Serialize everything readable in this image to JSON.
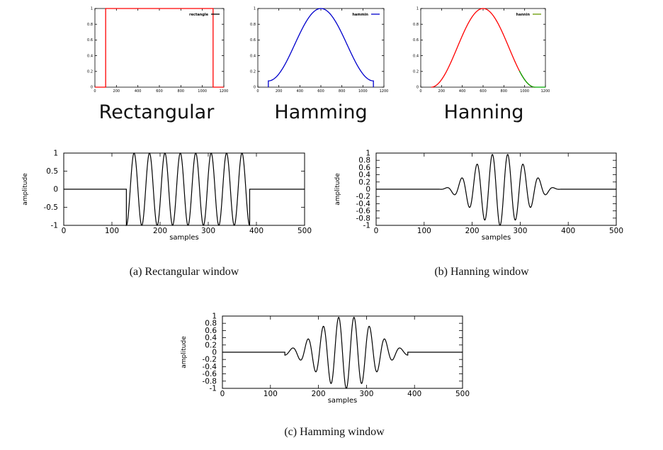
{
  "labels": {
    "top_left": "Rectangular",
    "top_mid": "Hamming",
    "top_right": "Hanning"
  },
  "captions": {
    "a": "(a) Rectangular window",
    "b": "(b) Hanning window",
    "c": "(c) Hamming window"
  },
  "chart_data": [
    {
      "id": "win-rect",
      "type": "line",
      "legend": "rectangle",
      "legend_position": "top-right",
      "color": "#ff0000",
      "legend_color": "#000000",
      "shape": "rectangular",
      "start": 100,
      "end": 1100,
      "xlim": [
        0,
        1200
      ],
      "ylim": [
        0,
        1
      ],
      "xticks": [
        "0",
        "200",
        "400",
        "600",
        "800",
        "1000",
        "1200"
      ],
      "yticks": [
        "0",
        "0.2",
        "0.4",
        "0.6",
        "0.8",
        "1"
      ],
      "x": [
        0,
        100,
        100,
        1100,
        1100,
        1200
      ],
      "y": [
        0,
        0,
        1,
        1,
        0,
        0
      ]
    },
    {
      "id": "win-hamming",
      "type": "line",
      "legend": "hammin",
      "legend_position": "top-right",
      "color": "#0000cc",
      "legend_color": "#0000cc",
      "shape": "hamming",
      "start": 100,
      "end": 1100,
      "xlim": [
        0,
        1200
      ],
      "ylim": [
        0,
        1
      ],
      "xticks": [
        "0",
        "200",
        "400",
        "600",
        "800",
        "1000",
        "1200"
      ],
      "yticks": [
        "0",
        "0.2",
        "0.4",
        "0.6",
        "0.8",
        "1"
      ],
      "x": [
        100,
        200,
        300,
        400,
        500,
        600,
        700,
        800,
        900,
        1000,
        1100
      ],
      "y": [
        0.08,
        0.17,
        0.4,
        0.68,
        0.91,
        1.0,
        0.91,
        0.68,
        0.4,
        0.17,
        0.08
      ]
    },
    {
      "id": "win-hanning",
      "type": "line",
      "legend": "hannin",
      "legend_position": "top-right",
      "color": "#ff0000",
      "legend_color": "#669900",
      "tail_color": "#00aa00",
      "shape": "hanning",
      "start": 100,
      "end": 1100,
      "xlim": [
        0,
        1200
      ],
      "ylim": [
        0,
        1
      ],
      "xticks": [
        "0",
        "200",
        "400",
        "600",
        "800",
        "1000",
        "1200"
      ],
      "yticks": [
        "0",
        "0.2",
        "0.4",
        "0.6",
        "0.8",
        "1"
      ],
      "x": [
        100,
        200,
        300,
        400,
        500,
        600,
        700,
        800,
        900,
        1000,
        1100
      ],
      "y": [
        0.0,
        0.1,
        0.35,
        0.65,
        0.9,
        1.0,
        0.9,
        0.65,
        0.35,
        0.1,
        0.0
      ]
    },
    {
      "id": "sig-rect",
      "type": "line",
      "color": "#000000",
      "window": "rectangular",
      "start": 130,
      "end": 386,
      "period": 32,
      "xlim": [
        0,
        500
      ],
      "ylim": [
        -1,
        1
      ],
      "xlabel": "samples",
      "ylabel": "amplitude",
      "xticks": [
        "0",
        "100",
        "200",
        "300",
        "400",
        "500"
      ],
      "yticks": [
        "-1",
        "-0.5",
        "0",
        "0.5",
        "1"
      ],
      "x_samples": [
        130,
        138,
        146,
        154,
        162,
        170,
        178,
        186,
        194,
        386
      ],
      "y_samples": [
        -1,
        0,
        1,
        0,
        -1,
        0,
        1,
        0,
        -1,
        -1
      ]
    },
    {
      "id": "sig-hanning",
      "type": "line",
      "color": "#000000",
      "window": "hanning",
      "start": 130,
      "end": 386,
      "period": 32,
      "xlim": [
        0,
        500
      ],
      "ylim": [
        -1,
        1
      ],
      "xlabel": "samples",
      "ylabel": "amplitude",
      "xticks": [
        "0",
        "100",
        "200",
        "300",
        "400",
        "500"
      ],
      "yticks": [
        "-1",
        "-0.8",
        "-0.6",
        "-0.4",
        "-0.2",
        "0",
        "0.2",
        "0.4",
        "0.6",
        "0.8",
        "1"
      ],
      "x_samples": [
        146,
        178,
        210,
        242,
        258,
        274,
        306,
        338,
        370
      ],
      "y_samples": [
        0.04,
        0.29,
        0.69,
        0.96,
        -1.0,
        0.96,
        0.69,
        0.29,
        0.04
      ]
    },
    {
      "id": "sig-hamming",
      "type": "line",
      "color": "#000000",
      "window": "hamming",
      "start": 130,
      "end": 386,
      "period": 32,
      "xlim": [
        0,
        500
      ],
      "ylim": [
        -1,
        1
      ],
      "xlabel": "samples",
      "ylabel": "amplitude",
      "xticks": [
        "0",
        "100",
        "200",
        "300",
        "400",
        "500"
      ],
      "yticks": [
        "-1",
        "-0.8",
        "-0.6",
        "-0.4",
        "-0.2",
        "0",
        "0.2",
        "0.4",
        "0.6",
        "0.8",
        "1"
      ],
      "x_samples": [
        130,
        146,
        178,
        210,
        242,
        258,
        274,
        306,
        338,
        370,
        386
      ],
      "y_samples": [
        -0.08,
        0.12,
        0.35,
        0.71,
        0.97,
        -1.0,
        0.97,
        0.71,
        0.35,
        0.12,
        -0.08
      ]
    }
  ]
}
